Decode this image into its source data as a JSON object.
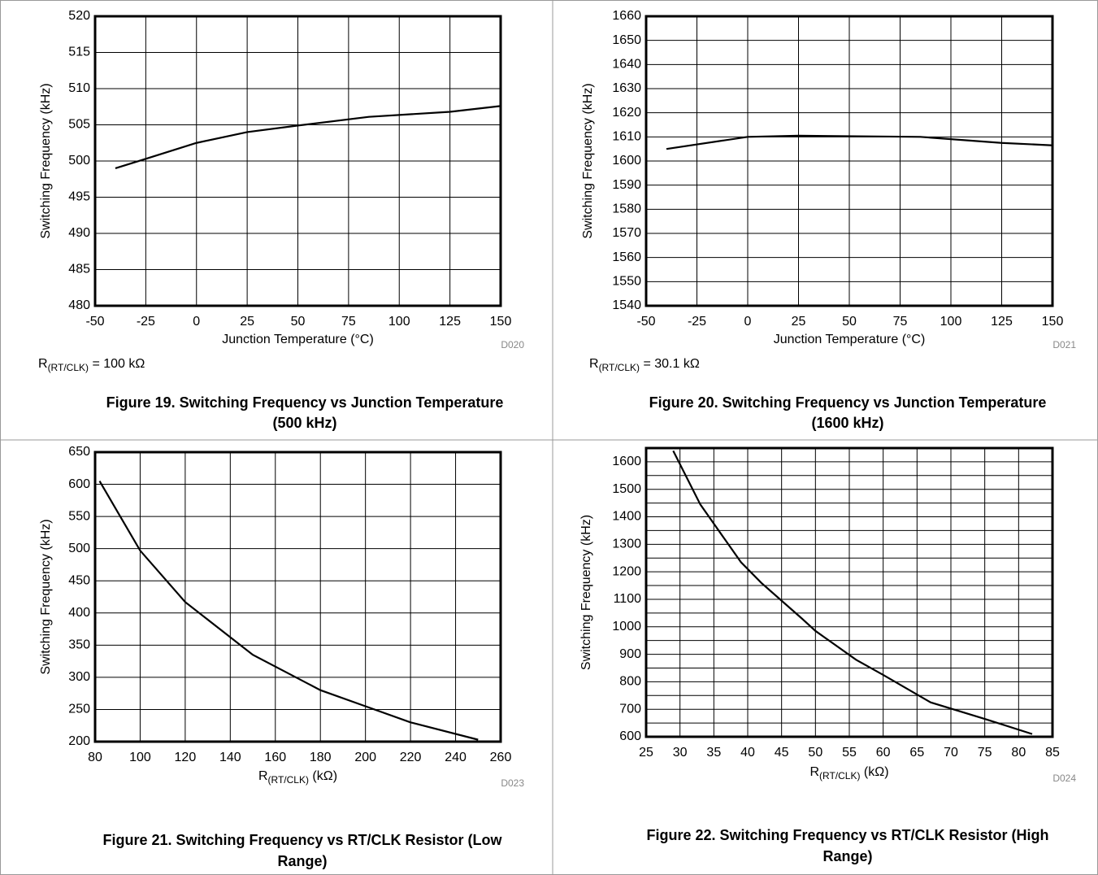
{
  "chart_data": [
    {
      "type": "line",
      "title": [
        "Figure 19. Switching Frequency vs Junction Temperature",
        "(500 kHz)"
      ],
      "xlabel": "Junction Temperature (°C)",
      "ylabel": "Switching Frequency (kHz)",
      "note": {
        "main": "R",
        "sub": "(RT/CLK)",
        "rest": " = 100 kΩ"
      },
      "code": "D020",
      "x": [
        -40,
        -25,
        0,
        25,
        50,
        85,
        125,
        150
      ],
      "values": [
        499,
        500.3,
        502.5,
        504,
        504.9,
        506.1,
        506.8,
        507.6
      ],
      "color": "#000000",
      "xlim": [
        -50,
        150
      ],
      "xticks": [
        -50,
        -25,
        0,
        25,
        50,
        75,
        100,
        125,
        150
      ],
      "ylim": [
        480,
        520
      ],
      "yticks": [
        480,
        485,
        490,
        495,
        500,
        505,
        510,
        515,
        520
      ],
      "grid": true
    },
    {
      "type": "line",
      "title": [
        "Figure 20. Switching Frequency vs Junction Temperature",
        "(1600 kHz)"
      ],
      "xlabel": "Junction Temperature (°C)",
      "ylabel": "Switching Frequency (kHz)",
      "note": {
        "main": "R",
        "sub": "(RT/CLK)",
        "rest": " = 30.1 kΩ"
      },
      "code": "D021",
      "x": [
        -40,
        0,
        25,
        85,
        125,
        150
      ],
      "values": [
        1605,
        1610,
        1610.5,
        1610,
        1607.5,
        1606.5
      ],
      "color": "#000000",
      "xlim": [
        -50,
        150
      ],
      "xticks": [
        -50,
        -25,
        0,
        25,
        50,
        75,
        100,
        125,
        150
      ],
      "ylim": [
        1540,
        1660
      ],
      "yticks": [
        1540,
        1550,
        1560,
        1570,
        1580,
        1590,
        1600,
        1610,
        1620,
        1630,
        1640,
        1650,
        1660
      ],
      "grid": true
    },
    {
      "type": "line",
      "title": [
        "Figure 21. Switching Frequency vs RT/CLK Resistor (Low",
        "Range)"
      ],
      "xlabel": {
        "main": "R",
        "sub": "(RT/CLK)",
        "rest": " (kΩ)"
      },
      "ylabel": "Switching Frequency (kHz)",
      "code": "D023",
      "x": [
        82,
        100,
        120,
        150,
        180,
        200,
        220,
        250
      ],
      "values": [
        605,
        497,
        417,
        335,
        280,
        255,
        230,
        203
      ],
      "color": "#000000",
      "xlim": [
        80,
        260
      ],
      "xticks": [
        80,
        100,
        120,
        140,
        160,
        180,
        200,
        220,
        240,
        260
      ],
      "ylim": [
        200,
        650
      ],
      "yticks": [
        200,
        250,
        300,
        350,
        400,
        450,
        500,
        550,
        600,
        650
      ],
      "grid": true
    },
    {
      "type": "line",
      "title": [
        "Figure 22. Switching Frequency vs RT/CLK Resistor (High",
        "Range)"
      ],
      "xlabel": {
        "main": "R",
        "sub": "(RT/CLK)",
        "rest": " (kΩ)"
      },
      "ylabel": "Switching Frequency (kHz)",
      "code": "D024",
      "x": [
        29,
        33,
        39,
        42,
        48,
        50,
        56,
        60,
        67,
        75,
        82
      ],
      "values": [
        1640,
        1445,
        1235,
        1160,
        1030,
        985,
        880,
        825,
        725,
        665,
        610
      ],
      "color": "#000000",
      "xlim": [
        25,
        85
      ],
      "xticks": [
        25,
        30,
        35,
        40,
        45,
        50,
        55,
        60,
        65,
        70,
        75,
        80,
        85
      ],
      "ylim": [
        600,
        1650
      ],
      "yticks": [
        600,
        700,
        800,
        900,
        1000,
        1100,
        1200,
        1300,
        1400,
        1500,
        1600
      ],
      "ygrid": [
        650,
        750,
        850,
        950,
        1050,
        1150,
        1250,
        1350,
        1450,
        1550,
        1650
      ],
      "grid": true
    }
  ]
}
